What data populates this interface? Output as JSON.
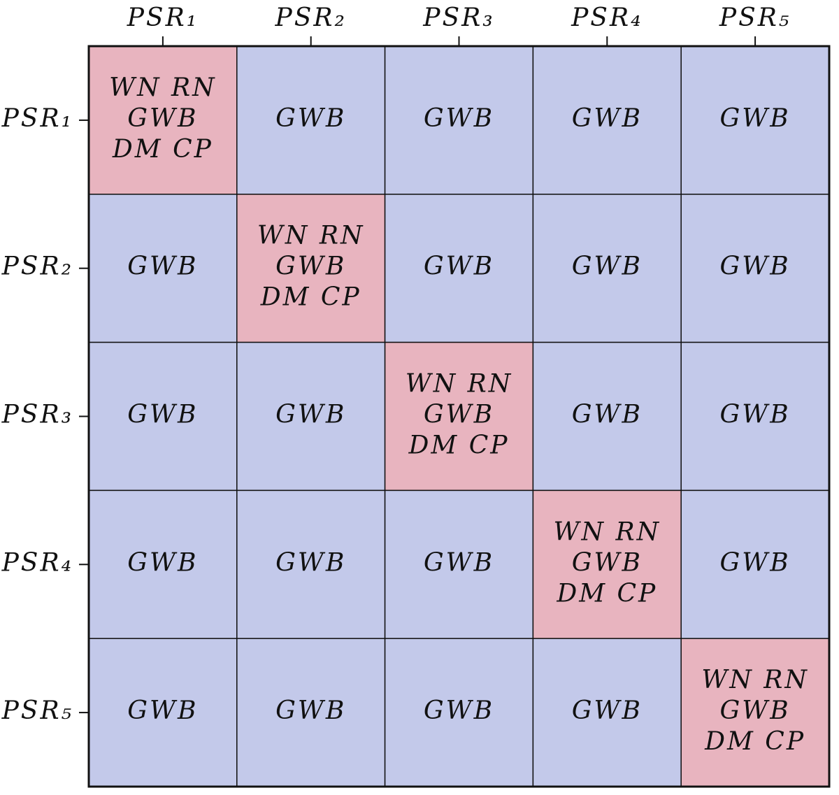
{
  "columns": [
    "PSR₁",
    "PSR₂",
    "PSR₃",
    "PSR₄",
    "PSR₅"
  ],
  "rows": [
    {
      "label": "PSR₁",
      "cells": [
        [
          "WN RN",
          "GWB",
          "DM CP"
        ],
        [
          "GWB"
        ],
        [
          "GWB"
        ],
        [
          "GWB"
        ],
        [
          "GWB"
        ]
      ]
    },
    {
      "label": "PSR₂",
      "cells": [
        [
          "GWB"
        ],
        [
          "WN RN",
          "GWB",
          "DM CP"
        ],
        [
          "GWB"
        ],
        [
          "GWB"
        ],
        [
          "GWB"
        ]
      ]
    },
    {
      "label": "PSR₃",
      "cells": [
        [
          "GWB"
        ],
        [
          "GWB"
        ],
        [
          "WN RN",
          "GWB",
          "DM CP"
        ],
        [
          "GWB"
        ],
        [
          "GWB"
        ]
      ]
    },
    {
      "label": "PSR₄",
      "cells": [
        [
          "GWB"
        ],
        [
          "GWB"
        ],
        [
          "GWB"
        ],
        [
          "WN RN",
          "GWB",
          "DM CP"
        ],
        [
          "GWB"
        ]
      ]
    },
    {
      "label": "PSR₅",
      "cells": [
        [
          "GWB"
        ],
        [
          "GWB"
        ],
        [
          "GWB"
        ],
        [
          "GWB"
        ],
        [
          "WN RN",
          "GWB",
          "DM CP"
        ]
      ]
    }
  ]
}
